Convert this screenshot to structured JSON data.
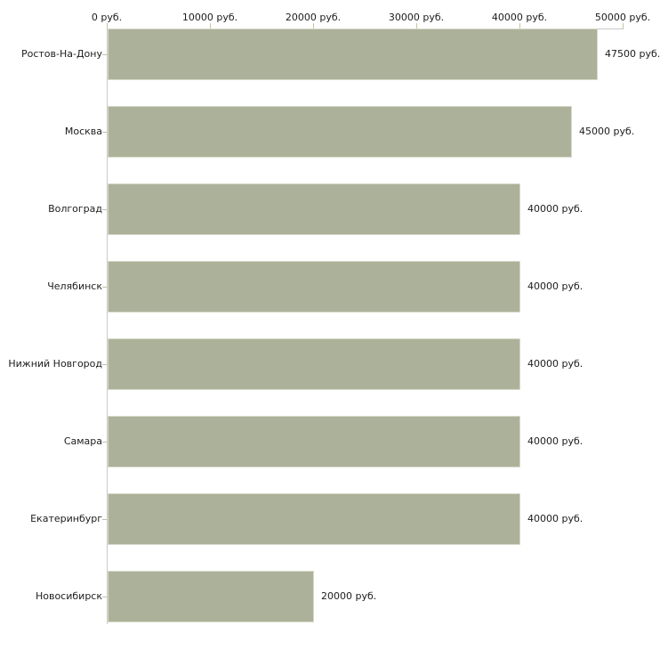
{
  "chart_data": {
    "type": "bar",
    "orientation": "horizontal",
    "title": "",
    "xlabel": "",
    "ylabel": "",
    "grid": false,
    "legend": false,
    "categories": [
      "Ростов-На-Дону",
      "Москва",
      "Волгоград",
      "Челябинск",
      "Нижний Новгород",
      "Самара",
      "Екатеринбург",
      "Новосибирск"
    ],
    "values": [
      47500,
      45000,
      40000,
      40000,
      40000,
      40000,
      40000,
      20000
    ],
    "value_labels": [
      "47500 руб.",
      "45000 руб.",
      "40000 руб.",
      "40000 руб.",
      "40000 руб.",
      "40000 руб.",
      "40000 руб.",
      "20000 руб."
    ],
    "x_axis": {
      "position": "top",
      "range": [
        0,
        50000
      ],
      "ticks": [
        0,
        10000,
        20000,
        30000,
        40000,
        50000
      ],
      "tick_labels": [
        "0 руб.",
        "10000 руб.",
        "20000 руб.",
        "30000 руб.",
        "40000 руб.",
        "50000 руб."
      ]
    },
    "colors": {
      "background": "#ffffff",
      "bar_fill": "#acb299",
      "bar_edge": "#d7dacb",
      "axis_line": "#c9c9c9",
      "tick_mark": "#c5c49c",
      "category_tick": "#c6beaa",
      "text": "#1c1c1c"
    }
  }
}
